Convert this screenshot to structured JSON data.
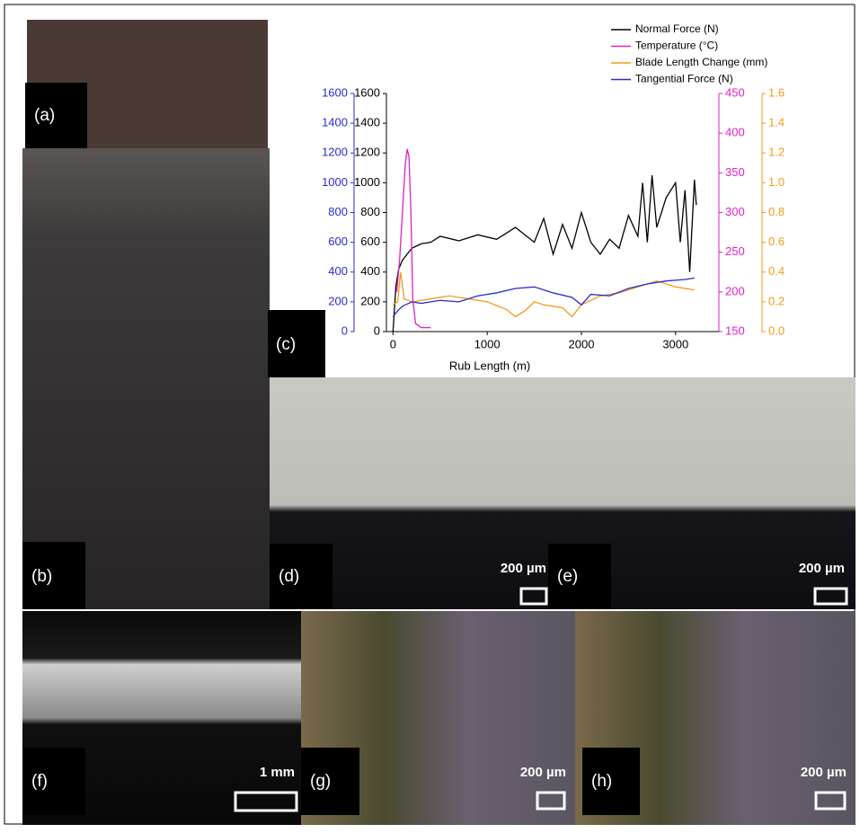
{
  "chart_data": {
    "type": "line",
    "x_label": "Rub Length (m)",
    "xlim": [
      -70,
      3460
    ],
    "xticks": [
      0,
      1000,
      2000,
      3000
    ],
    "ylim": [
      0,
      1600
    ],
    "yticks": [
      0,
      200,
      400,
      600,
      800,
      1000,
      1200,
      1400,
      1600
    ],
    "y2lim": [
      150,
      450
    ],
    "y2ticks": [
      150,
      200,
      250,
      300,
      350,
      400,
      450
    ],
    "y3lim": [
      0,
      1.6
    ],
    "y3ticks": [
      {
        "value": 0,
        "label": "0.0"
      },
      0.2,
      0.4,
      0.6,
      0.8,
      {
        "value": 1,
        "label": "1.0"
      },
      1.2,
      1.4,
      1.6
    ],
    "y4lim": [
      0,
      1600
    ],
    "y4ticks": [
      0,
      200,
      400,
      600,
      800,
      1000,
      1200,
      1400,
      1600
    ],
    "axis_colors": {
      "y": "#000000",
      "y2": "#e020c0",
      "y3": "#f39a1a",
      "y4": "#2a2ad0"
    },
    "series": [
      {
        "name": "Normal Force (N)",
        "color": "#000000",
        "axis": "y",
        "x": [
          0,
          30,
          60,
          100,
          150,
          200,
          300,
          400,
          500,
          700,
          900,
          1100,
          1300,
          1500,
          1600,
          1700,
          1800,
          1900,
          2000,
          2100,
          2200,
          2300,
          2400,
          2500,
          2600,
          2650,
          2700,
          2750,
          2800,
          2900,
          3000,
          3050,
          3100,
          3150,
          3200,
          3220
        ],
        "values": [
          0,
          300,
          420,
          480,
          520,
          560,
          590,
          600,
          640,
          610,
          650,
          620,
          700,
          600,
          760,
          520,
          720,
          560,
          800,
          600,
          520,
          620,
          560,
          780,
          640,
          1000,
          600,
          1050,
          700,
          900,
          1000,
          600,
          950,
          400,
          1020,
          850
        ]
      },
      {
        "name": "Temperature (°C)",
        "color": "#e020c0",
        "axis": "y2",
        "x": [
          40,
          70,
          100,
          130,
          150,
          170,
          190,
          210,
          240,
          300,
          400
        ],
        "values": [
          200,
          240,
          300,
          360,
          380,
          370,
          300,
          190,
          160,
          155,
          155
        ]
      },
      {
        "name": "Blade Length Change (mm)",
        "color": "#f39a1a",
        "axis": "y3",
        "x": [
          0,
          50,
          80,
          120,
          200,
          400,
          600,
          800,
          1000,
          1200,
          1300,
          1400,
          1500,
          1600,
          1800,
          1900,
          2000,
          2200,
          2400,
          2600,
          2800,
          3000,
          3200
        ],
        "values": [
          0.18,
          0.2,
          0.4,
          0.22,
          0.2,
          0.22,
          0.24,
          0.22,
          0.2,
          0.15,
          0.1,
          0.14,
          0.2,
          0.18,
          0.16,
          0.1,
          0.18,
          0.24,
          0.26,
          0.3,
          0.34,
          0.3,
          0.28
        ]
      },
      {
        "name": "Tangential Force (N)",
        "color": "#2a2ad0",
        "axis": "y4",
        "x": [
          0,
          50,
          100,
          200,
          300,
          500,
          700,
          900,
          1100,
          1300,
          1500,
          1700,
          1900,
          2000,
          2100,
          2300,
          2500,
          2700,
          2900,
          3100,
          3200
        ],
        "values": [
          100,
          140,
          170,
          200,
          190,
          210,
          200,
          240,
          260,
          290,
          300,
          260,
          230,
          180,
          250,
          240,
          290,
          320,
          340,
          350,
          360
        ]
      }
    ]
  },
  "panels": [
    {
      "label": "(a)"
    },
    {
      "label": "(b)"
    },
    {
      "label": "(c)"
    },
    {
      "label": "(d)"
    },
    {
      "label": "(e)"
    },
    {
      "label": "(f)"
    },
    {
      "label": "(g)"
    },
    {
      "label": "(h)"
    }
  ],
  "scale_labels": [
    "200 µm",
    "200 µm",
    "1 mm",
    "200 µm",
    "200 µm"
  ]
}
